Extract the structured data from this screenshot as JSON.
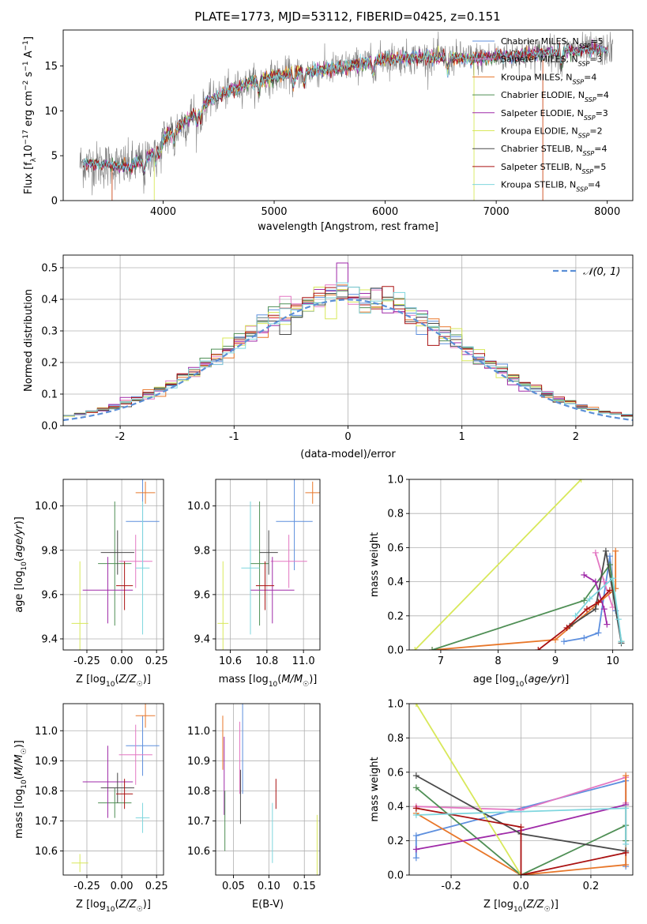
{
  "title": "PLATE=1773, MJD=53112, FIBERID=0425, z=0.151",
  "colors": {
    "Chabrier MILES": "#5d8fde",
    "Salpeter MILES": "#e377c2",
    "Kroupa MILES": "#e8772a",
    "Chabrier ELODIE": "#4f8f55",
    "Salpeter ELODIE": "#9f2aa8",
    "Kroupa ELODIE": "#d8e85a",
    "Chabrier STELIB": "#4a4a4a",
    "Salpeter STELIB": "#aa1111",
    "Kroupa STELIB": "#7fd6de",
    "data": "#808080",
    "normal": "#5b8fd6"
  },
  "legend_spectrum": [
    {
      "model": "Chabrier MILES",
      "prefix": "Chabrier MILES, N",
      "n": "5"
    },
    {
      "model": "Salpeter MILES",
      "prefix": "Salpeter MILES, N",
      "n": "3"
    },
    {
      "model": "Kroupa MILES",
      "prefix": "Kroupa MILES, N",
      "n": "4"
    },
    {
      "model": "Chabrier ELODIE",
      "prefix": "Chabrier ELODIE, N",
      "n": "4"
    },
    {
      "model": "Salpeter ELODIE",
      "prefix": "Salpeter ELODIE, N",
      "n": "3"
    },
    {
      "model": "Kroupa ELODIE",
      "prefix": "Kroupa ELODIE, N",
      "n": "2"
    },
    {
      "model": "Chabrier STELIB",
      "prefix": "Chabrier STELIB, N",
      "n": "4"
    },
    {
      "model": "Salpeter STELIB",
      "prefix": "Salpeter STELIB, N",
      "n": "5"
    },
    {
      "model": "Kroupa STELIB",
      "prefix": "Kroupa STELIB, N",
      "n": "4"
    }
  ],
  "legend_hist": "𝒩(0, 1)",
  "chart_data": [
    {
      "type": "line",
      "name": "spectrum",
      "xlabel": "wavelength [Angstrom, rest frame]",
      "ylabel": "Flux [f_λ 10^-17 erg cm^-2 s^-1 A^-1]",
      "xlim": [
        3100,
        8230
      ],
      "ylim": [
        0,
        19
      ],
      "xticks": [
        4000,
        5000,
        6000,
        7000,
        8000
      ],
      "yticks": [
        0,
        5,
        10,
        15
      ],
      "x_range": [
        3250,
        8050
      ],
      "continuum": [
        [
          3250,
          4.1
        ],
        [
          3500,
          3.9
        ],
        [
          3700,
          3.8
        ],
        [
          3850,
          4.6
        ],
        [
          3950,
          6.0
        ],
        [
          4050,
          7.5
        ],
        [
          4200,
          8.8
        ],
        [
          4400,
          11.0
        ],
        [
          4600,
          12.3
        ],
        [
          4800,
          13.2
        ],
        [
          5000,
          13.8
        ],
        [
          5200,
          14.3
        ],
        [
          5500,
          14.6
        ],
        [
          5800,
          15.3
        ],
        [
          6000,
          15.8
        ],
        [
          6200,
          15.9
        ],
        [
          6500,
          16.0
        ],
        [
          6800,
          15.8
        ],
        [
          7000,
          16.0
        ],
        [
          7300,
          16.3
        ],
        [
          7600,
          16.6
        ],
        [
          7800,
          16.7
        ],
        [
          8050,
          16.8
        ]
      ],
      "absorption_features": [
        3830,
        3933,
        3968,
        4101,
        4304,
        4340,
        4861,
        5175,
        5270,
        5890,
        6563,
        7590
      ]
    },
    {
      "type": "step",
      "name": "residual histogram",
      "xlabel": "(data-model)/error",
      "ylabel": "Normed distribution",
      "xlim": [
        -2.5,
        2.5
      ],
      "ylim": [
        0,
        0.54
      ],
      "xticks": [
        -2,
        -1,
        0,
        1,
        2
      ],
      "yticks": [
        0.0,
        0.1,
        0.2,
        0.3,
        0.4,
        0.5
      ],
      "bins": 50,
      "normal_curve": {
        "mean": 0,
        "sigma": 1
      }
    },
    {
      "type": "errorbar",
      "name": "age vs Z",
      "xlabel": "Z [log10(Z/Z☉)]",
      "ylabel": "age [log10(age/yr)]",
      "xlim": [
        -0.42,
        0.3
      ],
      "ylim": [
        9.35,
        10.12
      ],
      "xticks": [
        -0.25,
        0.0,
        0.25
      ],
      "yticks": [
        9.4,
        9.6,
        9.8,
        10.0
      ],
      "points": [
        {
          "model": "Chabrier MILES",
          "x": 0.15,
          "xerr": 0.12,
          "y": 9.93,
          "yerr": 0.22
        },
        {
          "model": "Salpeter MILES",
          "x": 0.1,
          "xerr": 0.12,
          "y": 9.75,
          "yerr": 0.12
        },
        {
          "model": "Kroupa MILES",
          "x": 0.17,
          "xerr": 0.07,
          "y": 10.06,
          "yerr": 0.05
        },
        {
          "model": "Chabrier ELODIE",
          "x": -0.05,
          "xerr": 0.12,
          "y": 9.74,
          "yerr": 0.28
        },
        {
          "model": "Salpeter ELODIE",
          "x": -0.1,
          "xerr": 0.18,
          "y": 9.62,
          "yerr": 0.15
        },
        {
          "model": "Kroupa ELODIE",
          "x": -0.3,
          "xerr": 0.06,
          "y": 9.47,
          "yerr": 0.28
        },
        {
          "model": "Chabrier STELIB",
          "x": -0.03,
          "xerr": 0.12,
          "y": 9.79,
          "yerr": 0.1
        },
        {
          "model": "Salpeter STELIB",
          "x": 0.02,
          "xerr": 0.06,
          "y": 9.64,
          "yerr": 0.11
        },
        {
          "model": "Kroupa STELIB",
          "x": 0.15,
          "xerr": 0.05,
          "y": 9.72,
          "yerr": 0.3
        }
      ]
    },
    {
      "type": "errorbar",
      "name": "age vs mass",
      "xlabel": "mass [log10(M/M☉)]",
      "ylabel": "",
      "xlim": [
        10.52,
        11.09
      ],
      "ylim": [
        9.35,
        10.12
      ],
      "xticks": [
        10.6,
        10.8,
        11.0
      ],
      "yticks": [
        9.4,
        9.6,
        9.8,
        10.0
      ],
      "points": [
        {
          "model": "Chabrier MILES",
          "x": 10.95,
          "xerr": 0.1,
          "y": 9.93,
          "yerr": 0.22
        },
        {
          "model": "Salpeter MILES",
          "x": 10.92,
          "xerr": 0.1,
          "y": 9.75,
          "yerr": 0.12
        },
        {
          "model": "Kroupa MILES",
          "x": 11.05,
          "xerr": 0.04,
          "y": 10.06,
          "yerr": 0.05
        },
        {
          "model": "Chabrier ELODIE",
          "x": 10.76,
          "xerr": 0.05,
          "y": 9.74,
          "yerr": 0.28
        },
        {
          "model": "Salpeter ELODIE",
          "x": 10.83,
          "xerr": 0.12,
          "y": 9.62,
          "yerr": 0.15
        },
        {
          "model": "Kroupa ELODIE",
          "x": 10.56,
          "xerr": 0.03,
          "y": 9.47,
          "yerr": 0.28
        },
        {
          "model": "Chabrier STELIB",
          "x": 10.81,
          "xerr": 0.05,
          "y": 9.79,
          "yerr": 0.1
        },
        {
          "model": "Salpeter STELIB",
          "x": 10.79,
          "xerr": 0.05,
          "y": 9.64,
          "yerr": 0.11
        },
        {
          "model": "Kroupa STELIB",
          "x": 10.71,
          "xerr": 0.05,
          "y": 9.72,
          "yerr": 0.3
        }
      ]
    },
    {
      "type": "line",
      "name": "mass weight vs age",
      "xlabel": "age [log10(age/yr)]",
      "ylabel": "mass weight",
      "xlim": [
        6.45,
        10.35
      ],
      "ylim": [
        0,
        1
      ],
      "xticks": [
        7,
        8,
        9,
        10
      ],
      "yticks": [
        0.0,
        0.2,
        0.4,
        0.6,
        0.8,
        1.0
      ],
      "series": [
        {
          "model": "Chabrier MILES",
          "points": [
            [
              9.15,
              0.05
            ],
            [
              9.5,
              0.07
            ],
            [
              9.75,
              0.1
            ],
            [
              9.95,
              0.55
            ],
            [
              10.05,
              0.23
            ]
          ]
        },
        {
          "model": "Salpeter MILES",
          "points": [
            [
              9.7,
              0.57
            ],
            [
              9.85,
              0.4
            ],
            [
              10.0,
              0.25
            ]
          ]
        },
        {
          "model": "Kroupa MILES",
          "points": [
            [
              6.85,
              0.0
            ],
            [
              9.0,
              0.06
            ],
            [
              10.05,
              0.36
            ],
            [
              10.05,
              0.58
            ]
          ]
        },
        {
          "model": "Chabrier ELODIE",
          "points": [
            [
              6.85,
              0.0
            ],
            [
              9.5,
              0.29
            ],
            [
              9.95,
              0.5
            ],
            [
              10.15,
              0.05
            ]
          ]
        },
        {
          "model": "Salpeter ELODIE",
          "points": [
            [
              9.5,
              0.44
            ],
            [
              9.7,
              0.4
            ],
            [
              9.85,
              0.24
            ],
            [
              9.9,
              0.15
            ]
          ]
        },
        {
          "model": "Kroupa ELODIE",
          "points": [
            [
              6.55,
              0.0
            ],
            [
              9.45,
              1.0
            ]
          ]
        },
        {
          "model": "Chabrier STELIB",
          "points": [
            [
              9.25,
              0.14
            ],
            [
              9.7,
              0.24
            ],
            [
              9.88,
              0.58
            ],
            [
              10.15,
              0.04
            ]
          ]
        },
        {
          "model": "Salpeter STELIB",
          "points": [
            [
              8.7,
              0.0
            ],
            [
              9.2,
              0.13
            ],
            [
              9.55,
              0.24
            ],
            [
              9.75,
              0.28
            ],
            [
              9.95,
              0.35
            ]
          ]
        },
        {
          "model": "Kroupa STELIB",
          "points": [
            [
              9.35,
              0.2
            ],
            [
              9.6,
              0.3
            ],
            [
              10.0,
              0.42
            ],
            [
              10.1,
              0.18
            ],
            [
              10.15,
              0.05
            ]
          ]
        }
      ]
    },
    {
      "type": "errorbar",
      "name": "mass vs Z",
      "xlabel": "Z [log10(Z/Z☉)]",
      "ylabel": "mass [log10(M/M☉)]",
      "xlim": [
        -0.42,
        0.3
      ],
      "ylim": [
        10.52,
        11.09
      ],
      "xticks": [
        -0.25,
        0.0,
        0.25
      ],
      "yticks": [
        10.6,
        10.7,
        10.8,
        10.9,
        11.0
      ],
      "points": [
        {
          "model": "Chabrier MILES",
          "x": 0.15,
          "xerr": 0.12,
          "y": 10.95,
          "yerr": 0.1
        },
        {
          "model": "Salpeter MILES",
          "x": 0.1,
          "xerr": 0.12,
          "y": 10.92,
          "yerr": 0.1
        },
        {
          "model": "Kroupa MILES",
          "x": 0.17,
          "xerr": 0.07,
          "y": 11.05,
          "yerr": 0.04
        },
        {
          "model": "Chabrier ELODIE",
          "x": -0.05,
          "xerr": 0.12,
          "y": 10.76,
          "yerr": 0.05
        },
        {
          "model": "Salpeter ELODIE",
          "x": -0.1,
          "xerr": 0.18,
          "y": 10.83,
          "yerr": 0.12
        },
        {
          "model": "Kroupa ELODIE",
          "x": -0.3,
          "xerr": 0.06,
          "y": 10.56,
          "yerr": 0.03
        },
        {
          "model": "Chabrier STELIB",
          "x": -0.03,
          "xerr": 0.12,
          "y": 10.81,
          "yerr": 0.05
        },
        {
          "model": "Salpeter STELIB",
          "x": 0.02,
          "xerr": 0.06,
          "y": 10.79,
          "yerr": 0.05
        },
        {
          "model": "Kroupa STELIB",
          "x": 0.15,
          "xerr": 0.05,
          "y": 10.71,
          "yerr": 0.05
        }
      ]
    },
    {
      "type": "errorbar",
      "name": "mass vs E(B-V)",
      "xlabel": "E(B-V)",
      "ylabel": "",
      "xlim": [
        0.025,
        0.172
      ],
      "ylim": [
        10.52,
        11.09
      ],
      "xticks": [
        0.05,
        0.1,
        0.15
      ],
      "yticks": [
        10.6,
        10.7,
        10.8,
        10.9,
        11.0
      ],
      "points": [
        {
          "model": "Kroupa MILES",
          "x": 0.035,
          "y": 10.96,
          "yerr": 0.09
        },
        {
          "model": "Salpeter ELODIE",
          "x": 0.037,
          "y": 10.85,
          "yerr": 0.13
        },
        {
          "model": "Chabrier ELODIE",
          "x": 0.038,
          "y": 10.7,
          "yerr": 0.1
        },
        {
          "model": "Salpeter MILES",
          "x": 0.059,
          "y": 10.91,
          "yerr": 0.12
        },
        {
          "model": "Chabrier STELIB",
          "x": 0.06,
          "y": 10.78,
          "yerr": 0.09
        },
        {
          "model": "Chabrier MILES",
          "x": 0.063,
          "y": 10.95,
          "yerr": 0.16
        },
        {
          "model": "Kroupa STELIB",
          "x": 0.105,
          "y": 10.66,
          "yerr": 0.1
        },
        {
          "model": "Salpeter STELIB",
          "x": 0.11,
          "y": 10.79,
          "yerr": 0.05
        },
        {
          "model": "Kroupa ELODIE",
          "x": 0.168,
          "y": 10.6,
          "yerr": 0.12
        }
      ]
    },
    {
      "type": "line",
      "name": "mass weight vs Z",
      "xlabel": "Z [log10(Z/Z☉)]",
      "ylabel": "mass weight",
      "xlim": [
        -0.32,
        0.32
      ],
      "ylim": [
        0,
        1
      ],
      "xticks": [
        -0.2,
        0.0,
        0.2
      ],
      "yticks": [
        0.0,
        0.2,
        0.4,
        0.6,
        0.8,
        1.0
      ],
      "series": [
        {
          "model": "Chabrier MILES",
          "points": [
            [
              -0.3,
              0.1
            ],
            [
              -0.3,
              0.23
            ],
            [
              0.3,
              0.55
            ],
            [
              0.3,
              0.05
            ]
          ]
        },
        {
          "model": "Salpeter MILES",
          "points": [
            [
              -0.3,
              0.4
            ],
            [
              0.0,
              0.38
            ],
            [
              0.3,
              0.57
            ],
            [
              0.3,
              0.42
            ]
          ]
        },
        {
          "model": "Kroupa MILES",
          "points": [
            [
              -0.3,
              0.36
            ],
            [
              0.0,
              0.0
            ],
            [
              0.3,
              0.06
            ],
            [
              0.3,
              0.58
            ]
          ]
        },
        {
          "model": "Chabrier ELODIE",
          "points": [
            [
              -0.3,
              0.51
            ],
            [
              0.0,
              0.0
            ],
            [
              0.3,
              0.29
            ],
            [
              0.3,
              0.2
            ]
          ]
        },
        {
          "model": "Salpeter ELODIE",
          "points": [
            [
              -0.3,
              0.15
            ],
            [
              0.0,
              0.26
            ],
            [
              0.3,
              0.41
            ]
          ]
        },
        {
          "model": "Kroupa ELODIE",
          "points": [
            [
              -0.3,
              1.0
            ],
            [
              0.0,
              0.0
            ]
          ]
        },
        {
          "model": "Chabrier STELIB",
          "points": [
            [
              -0.3,
              0.58
            ],
            [
              0.0,
              0.24
            ],
            [
              0.3,
              0.14
            ]
          ]
        },
        {
          "model": "Salpeter STELIB",
          "points": [
            [
              -0.3,
              0.39
            ],
            [
              0.0,
              0.28
            ],
            [
              0.0,
              0.0
            ],
            [
              0.3,
              0.13
            ]
          ]
        },
        {
          "model": "Kroupa STELIB",
          "points": [
            [
              -0.3,
              0.35
            ],
            [
              0.3,
              0.39
            ],
            [
              0.3,
              0.18
            ]
          ]
        }
      ]
    }
  ]
}
